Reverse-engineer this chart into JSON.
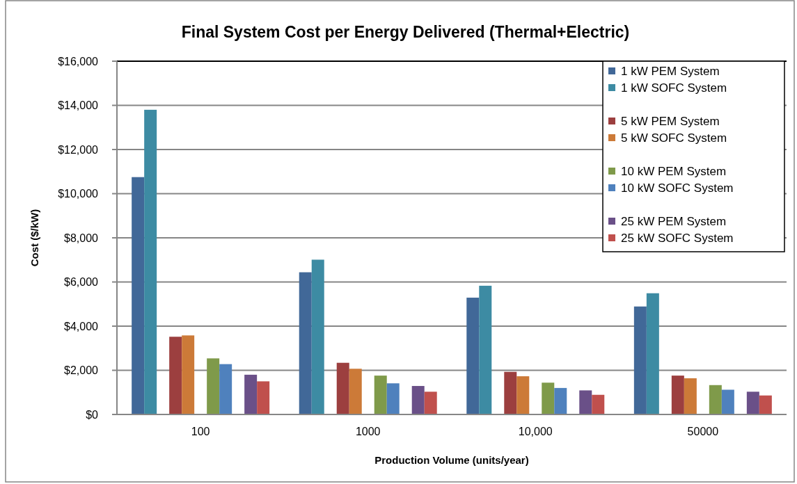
{
  "chart_data": {
    "type": "bar",
    "title": "Final System Cost per Energy Delivered (Thermal+Electric)",
    "xlabel": "Production Volume (units/year)",
    "ylabel": "Cost ($/kW)",
    "categories": [
      "100",
      "1000",
      "10,000",
      "50000"
    ],
    "series": [
      {
        "name": "1 kW PEM System",
        "color": "#416898",
        "values": [
          10750,
          6440,
          5290,
          4890
        ]
      },
      {
        "name": "1 kW SOFC System",
        "color": "#3d8ba3",
        "values": [
          13800,
          7010,
          5830,
          5490
        ]
      },
      {
        "name": "5 kW PEM System",
        "color": "#9c3f3f",
        "values": [
          3520,
          2340,
          1930,
          1760
        ]
      },
      {
        "name": "5 kW SOFC System",
        "color": "#cc7a38",
        "values": [
          3580,
          2070,
          1730,
          1640
        ]
      },
      {
        "name": "10 kW PEM System",
        "color": "#7f9a4a",
        "values": [
          2540,
          1760,
          1440,
          1330
        ]
      },
      {
        "name": "10 kW SOFC System",
        "color": "#4f81bd",
        "values": [
          2280,
          1410,
          1200,
          1120
        ]
      },
      {
        "name": "25 kW PEM System",
        "color": "#6a5088",
        "values": [
          1800,
          1290,
          1090,
          1030
        ]
      },
      {
        "name": "25 kW SOFC System",
        "color": "#c0504d",
        "values": [
          1500,
          1030,
          890,
          860
        ]
      }
    ],
    "ylim": [
      0,
      16000
    ],
    "yticks": [
      {
        "value": 0,
        "label": "$0"
      },
      {
        "value": 2000,
        "label": "$2,000"
      },
      {
        "value": 4000,
        "label": "$4,000"
      },
      {
        "value": 6000,
        "label": "$6,000"
      },
      {
        "value": 8000,
        "label": "$8,000"
      },
      {
        "value": 10000,
        "label": "$10,000"
      },
      {
        "value": 12000,
        "label": "$12,000"
      },
      {
        "value": 14000,
        "label": "$14,000"
      },
      {
        "value": 16000,
        "label": "$16,000"
      }
    ],
    "grid": "y",
    "legend": "top right"
  }
}
